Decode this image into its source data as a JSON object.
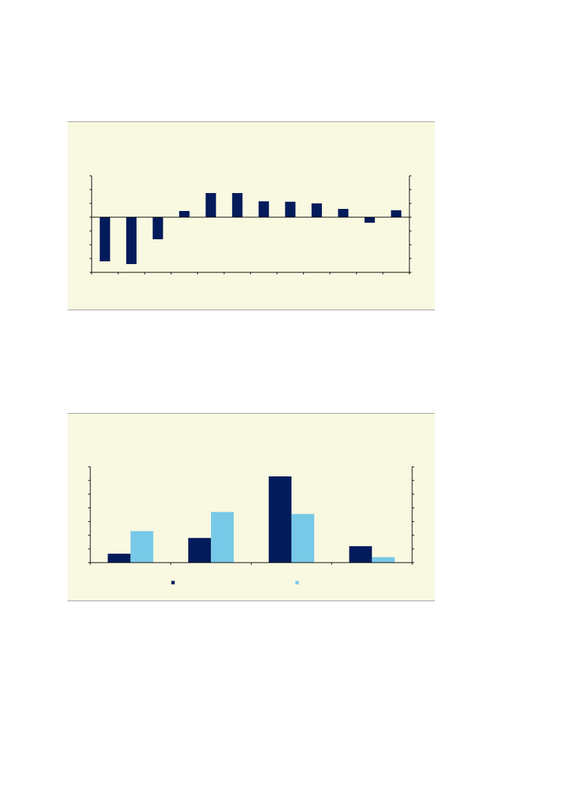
{
  "colors": {
    "panel_bg": "#f9f8e1",
    "panel_border": "#a0a0a0",
    "dark_navy": "#031b5b",
    "light_blue": "#77c9e7",
    "axis": "#000000"
  },
  "chart_data": [
    {
      "type": "bar",
      "title": "",
      "xlabel": "",
      "ylabel": "",
      "categories_count": 12,
      "ylim": [
        -4,
        3
      ],
      "ytick_step": 1,
      "grid": false,
      "series": [
        {
          "values": [
            -3.2,
            -3.4,
            -1.6,
            0.45,
            1.75,
            1.75,
            1.15,
            1.12,
            1.0,
            0.6,
            -0.4,
            0.5
          ],
          "color": "#031b5b"
        }
      ]
    },
    {
      "type": "bar",
      "title": "",
      "xlabel": "",
      "ylabel": "",
      "categories_count": 4,
      "ylim": [
        0,
        7
      ],
      "ytick_step": 1,
      "grid": false,
      "legend": "bottom",
      "series": [
        {
          "values": [
            0.65,
            1.8,
            6.3,
            1.2
          ],
          "color": "#031b5b"
        },
        {
          "values": [
            2.3,
            3.7,
            3.55,
            0.4
          ],
          "color": "#77c9e7"
        }
      ]
    }
  ]
}
